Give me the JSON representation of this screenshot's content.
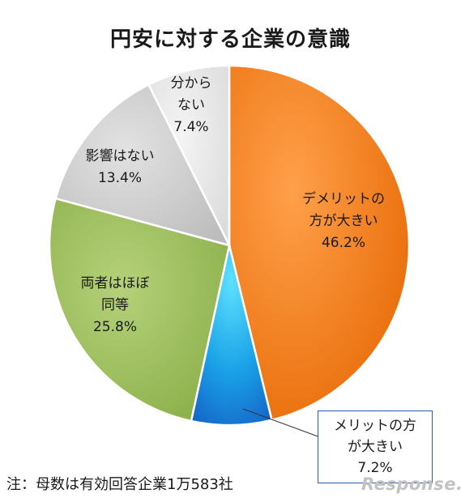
{
  "chart_data": {
    "type": "pie",
    "title": "円安に対する企業の意識",
    "start_angle_deg": 0,
    "direction": "clockwise",
    "slices": [
      {
        "label_lines": [
          "デメリットの",
          "方が大きい",
          "46.2%"
        ],
        "value": 46.2,
        "color": "#f07c1a"
      },
      {
        "label_lines": [
          "メリットの方",
          "が大きい",
          "7.2%"
        ],
        "value": 7.2,
        "color": "#1f9fe0"
      },
      {
        "label_lines": [
          "両者はほぼ",
          "同等",
          "25.8%"
        ],
        "value": 25.8,
        "color": "#9bbb59"
      },
      {
        "label_lines": [
          "影響はない",
          "13.4%"
        ],
        "value": 13.4,
        "color": "#cfcfcf"
      },
      {
        "label_lines": [
          "分から",
          "ない",
          "7.4%"
        ],
        "value": 7.4,
        "color": "#e8e8e8"
      }
    ],
    "footnote": "注：母数は有効回答企業1万583社"
  },
  "watermark": "Response."
}
